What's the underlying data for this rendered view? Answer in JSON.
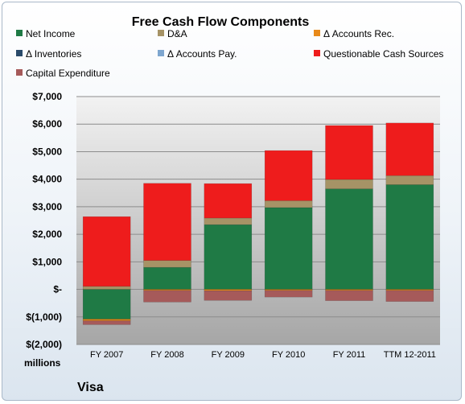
{
  "chart_data": {
    "type": "bar",
    "stacked": true,
    "title": "Free Cash Flow Components",
    "units_label": "millions",
    "company": "Visa",
    "categories": [
      "FY 2007",
      "FY 2008",
      "FY 2009",
      "FY 2010",
      "FY 2011",
      "TTM 12-2011"
    ],
    "y_ticks": [
      "$(2,000)",
      "$(1,000)",
      "$-",
      "$1,000",
      "$2,000",
      "$3,000",
      "$4,000",
      "$5,000",
      "$6,000",
      "$7,000"
    ],
    "ylim": [
      -2000,
      7000
    ],
    "legend_position": "top",
    "grid": true,
    "series": [
      {
        "name": "Net Income",
        "color": "#1f7a45",
        "values": [
          -1080,
          800,
          2350,
          2970,
          3650,
          3800
        ]
      },
      {
        "name": "D&A",
        "color": "#a69366",
        "values": [
          110,
          250,
          240,
          250,
          340,
          330
        ]
      },
      {
        "name": "Δ Accounts Rec.",
        "color": "#e88a1a",
        "values": [
          -60,
          -40,
          -50,
          -40,
          -40,
          -40
        ]
      },
      {
        "name": "Δ Inventories",
        "color": "#2a4a6a",
        "values": [
          0,
          0,
          0,
          0,
          0,
          0
        ]
      },
      {
        "name": "Δ Accounts Pay.",
        "color": "#7ea6cf",
        "values": [
          0,
          0,
          0,
          0,
          0,
          0
        ]
      },
      {
        "name": "Questionable Cash Sources",
        "color": "#ee1c1c",
        "values": [
          2530,
          2800,
          1250,
          1820,
          1960,
          1910
        ]
      },
      {
        "name": "Capital Expenditure",
        "color": "#a65a5a",
        "values": [
          -140,
          -420,
          -350,
          -240,
          -370,
          -400
        ]
      }
    ]
  }
}
